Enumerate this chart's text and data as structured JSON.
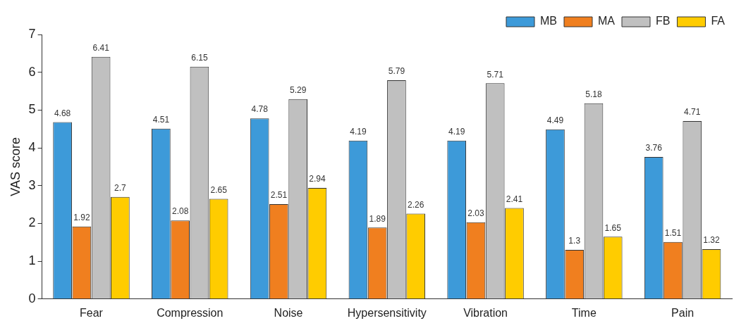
{
  "chart_data": {
    "type": "bar",
    "ylabel": "VAS score",
    "categories": [
      "Fear",
      "Compression",
      "Noise",
      "Hypersensitivity",
      "Vibration",
      "Time",
      "Pain"
    ],
    "series": [
      {
        "name": "MB",
        "color": "#3d9ad9",
        "values": [
          4.68,
          4.51,
          4.78,
          4.19,
          4.19,
          4.49,
          3.76
        ]
      },
      {
        "name": "MA",
        "color": "#f07f1f",
        "values": [
          1.92,
          2.08,
          2.51,
          1.89,
          2.03,
          1.3,
          1.51
        ]
      },
      {
        "name": "FB",
        "color": "#c0c0c0",
        "values": [
          6.41,
          6.15,
          5.29,
          5.79,
          5.71,
          5.18,
          4.71
        ]
      },
      {
        "name": "FA",
        "color": "#ffcc00",
        "values": [
          2.7,
          2.65,
          2.94,
          2.26,
          2.41,
          1.65,
          1.32
        ]
      }
    ],
    "ylim": [
      0,
      7
    ],
    "yticks": [
      0,
      1,
      2,
      3,
      4,
      5,
      6,
      7
    ],
    "grid": false,
    "legend": "top right",
    "data_labels": true
  }
}
